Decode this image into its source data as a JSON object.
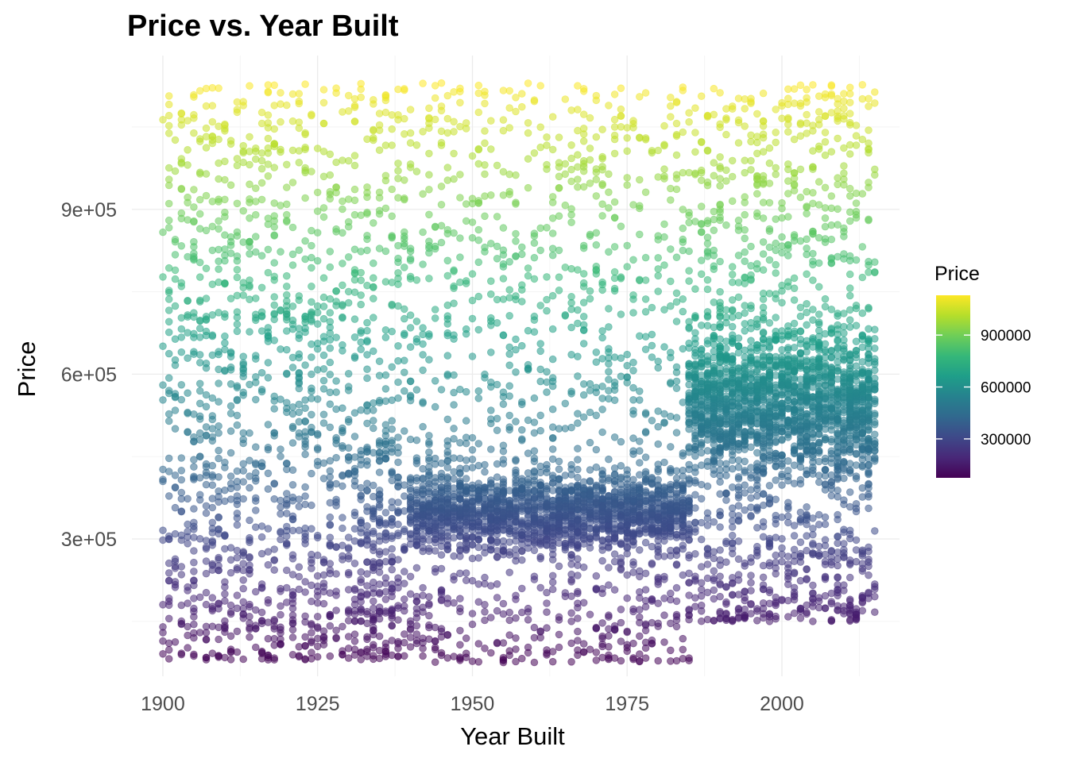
{
  "chart_data": {
    "type": "scatter",
    "title": "Price vs. Year Built",
    "xlabel": "Year Built",
    "ylabel": "Price",
    "xlim": [
      1895,
      2019
    ],
    "ylim": [
      50000,
      1180000
    ],
    "x_ticks": [
      1900,
      1925,
      1950,
      1975,
      2000
    ],
    "x_tick_labels": [
      "1900",
      "1925",
      "1950",
      "1975",
      "2000"
    ],
    "y_ticks": [
      300000,
      600000,
      900000
    ],
    "y_tick_labels": [
      "3e+05",
      "6e+05",
      "9e+05"
    ],
    "grid": true,
    "point_alpha": 0.55,
    "color_scale": {
      "name": "viridis",
      "variable": "Price",
      "min": 75000,
      "max": 1130000,
      "ticks": [
        300000,
        600000,
        900000
      ],
      "tick_labels": [
        "300000",
        "600000",
        "900000"
      ],
      "colors": [
        "#440154",
        "#482878",
        "#3e4989",
        "#31688e",
        "#26828e",
        "#1f9e89",
        "#35b779",
        "#6ece58",
        "#b5de2b",
        "#fde725"
      ]
    },
    "legend": {
      "title": "Price",
      "position": "right"
    },
    "density_profile": [
      {
        "year_start": 1900,
        "year_end": 1940,
        "price_min": 80000,
        "price_max": 1130000,
        "density": "medium"
      },
      {
        "year_start": 1930,
        "year_end": 1938,
        "price_min": 150000,
        "price_max": 600000,
        "density": "sparse"
      },
      {
        "year_start": 1940,
        "year_end": 1985,
        "price_min": 75000,
        "price_max": 1130000,
        "density": "high",
        "concentration": "200000-500000"
      },
      {
        "year_start": 1985,
        "year_end": 2015,
        "price_min": 150000,
        "price_max": 1130000,
        "density": "high",
        "concentration": "300000-800000"
      }
    ]
  }
}
